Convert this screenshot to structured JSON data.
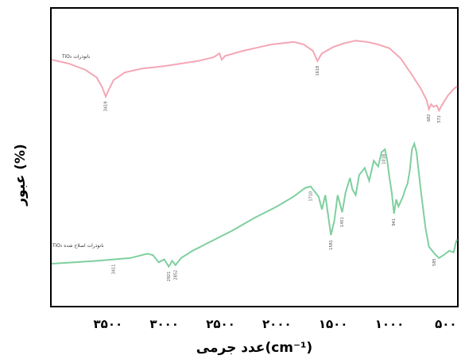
{
  "chart_data": {
    "type": "line",
    "xlabel": "عدد جرمی(cm⁻¹)",
    "ylabel": "عبور (%)",
    "xlim": [
      4000,
      400
    ],
    "x_reversed": true,
    "x_ticks": [
      {
        "value": 3500,
        "label": "۳۵۰۰"
      },
      {
        "value": 3000,
        "label": "۳۰۰۰"
      },
      {
        "value": 2500,
        "label": "۲۵۰۰"
      },
      {
        "value": 2000,
        "label": "۲۰۰۰"
      },
      {
        "value": 1500,
        "label": "۱۵۰۰"
      },
      {
        "value": 1000,
        "label": "۱۰۰۰"
      },
      {
        "value": 500,
        "label": "۵۰۰"
      }
    ],
    "ylim": [
      0,
      100
    ],
    "grid": false,
    "series": [
      {
        "name": "نانوذرات TiO₂",
        "color": "#f4a7b5",
        "points": [
          [
            4000,
            78
          ],
          [
            3850,
            75
          ],
          [
            3700,
            70
          ],
          [
            3600,
            64
          ],
          [
            3550,
            56
          ],
          [
            3520,
            49
          ],
          [
            3500,
            53
          ],
          [
            3450,
            62
          ],
          [
            3350,
            68
          ],
          [
            3200,
            71
          ],
          [
            3000,
            73
          ],
          [
            2850,
            75
          ],
          [
            2700,
            77
          ],
          [
            2560,
            80
          ],
          [
            2510,
            83
          ],
          [
            2490,
            78
          ],
          [
            2460,
            81
          ],
          [
            2300,
            85
          ],
          [
            2150,
            88
          ],
          [
            2050,
            90
          ],
          [
            1950,
            91
          ],
          [
            1850,
            92
          ],
          [
            1760,
            90
          ],
          [
            1680,
            85
          ],
          [
            1640,
            77
          ],
          [
            1600,
            83
          ],
          [
            1500,
            88
          ],
          [
            1400,
            91
          ],
          [
            1300,
            93
          ],
          [
            1200,
            92
          ],
          [
            1100,
            90
          ],
          [
            1000,
            87
          ],
          [
            900,
            79
          ],
          [
            800,
            66
          ],
          [
            720,
            55
          ],
          [
            670,
            46
          ],
          [
            650,
            39
          ],
          [
            630,
            43
          ],
          [
            610,
            41
          ],
          [
            580,
            42
          ],
          [
            560,
            38
          ],
          [
            530,
            43
          ],
          [
            480,
            50
          ],
          [
            430,
            55
          ],
          [
            400,
            57
          ]
        ],
        "annotations": [
          {
            "x": 3520,
            "text": "3419"
          },
          {
            "x": 1640,
            "text": "1618"
          },
          {
            "x": 650,
            "text": "682"
          },
          {
            "x": 560,
            "text": "572"
          }
        ]
      },
      {
        "name": "نانوذرات اصلاح شده TiO₂",
        "color": "#7fcf9f",
        "points": [
          [
            4000,
            10
          ],
          [
            3800,
            11
          ],
          [
            3600,
            12
          ],
          [
            3450,
            13
          ],
          [
            3300,
            14
          ],
          [
            3150,
            17
          ],
          [
            3100,
            16
          ],
          [
            3050,
            11
          ],
          [
            3000,
            13
          ],
          [
            2960,
            8
          ],
          [
            2930,
            12
          ],
          [
            2900,
            9
          ],
          [
            2850,
            14
          ],
          [
            2750,
            19
          ],
          [
            2600,
            25
          ],
          [
            2400,
            33
          ],
          [
            2200,
            42
          ],
          [
            2000,
            50
          ],
          [
            1850,
            57
          ],
          [
            1750,
            63
          ],
          [
            1700,
            64
          ],
          [
            1660,
            60
          ],
          [
            1630,
            57
          ],
          [
            1600,
            48
          ],
          [
            1570,
            58
          ],
          [
            1520,
            30
          ],
          [
            1490,
            40
          ],
          [
            1460,
            58
          ],
          [
            1420,
            46
          ],
          [
            1390,
            60
          ],
          [
            1350,
            70
          ],
          [
            1330,
            62
          ],
          [
            1300,
            58
          ],
          [
            1270,
            72
          ],
          [
            1220,
            77
          ],
          [
            1180,
            68
          ],
          [
            1140,
            82
          ],
          [
            1100,
            78
          ],
          [
            1070,
            88
          ],
          [
            1040,
            90
          ],
          [
            1020,
            82
          ],
          [
            1000,
            70
          ],
          [
            980,
            60
          ],
          [
            960,
            45
          ],
          [
            940,
            55
          ],
          [
            920,
            50
          ],
          [
            880,
            57
          ],
          [
            860,
            62
          ],
          [
            840,
            66
          ],
          [
            820,
            75
          ],
          [
            800,
            90
          ],
          [
            780,
            94
          ],
          [
            760,
            88
          ],
          [
            720,
            60
          ],
          [
            680,
            35
          ],
          [
            650,
            22
          ],
          [
            600,
            17
          ],
          [
            560,
            14
          ],
          [
            520,
            16
          ],
          [
            470,
            19
          ],
          [
            430,
            18
          ],
          [
            410,
            25
          ],
          [
            400,
            27
          ]
        ],
        "annotations": [
          {
            "x": 3450,
            "text": "3411"
          },
          {
            "x": 2960,
            "text": "2921"
          },
          {
            "x": 2900,
            "text": "2852"
          },
          {
            "x": 1700,
            "text": "1710"
          },
          {
            "x": 1520,
            "text": "1581"
          },
          {
            "x": 1420,
            "text": "1451"
          },
          {
            "x": 1050,
            "text": "1018"
          },
          {
            "x": 960,
            "text": "941"
          },
          {
            "x": 600,
            "text": "585"
          }
        ]
      }
    ]
  }
}
